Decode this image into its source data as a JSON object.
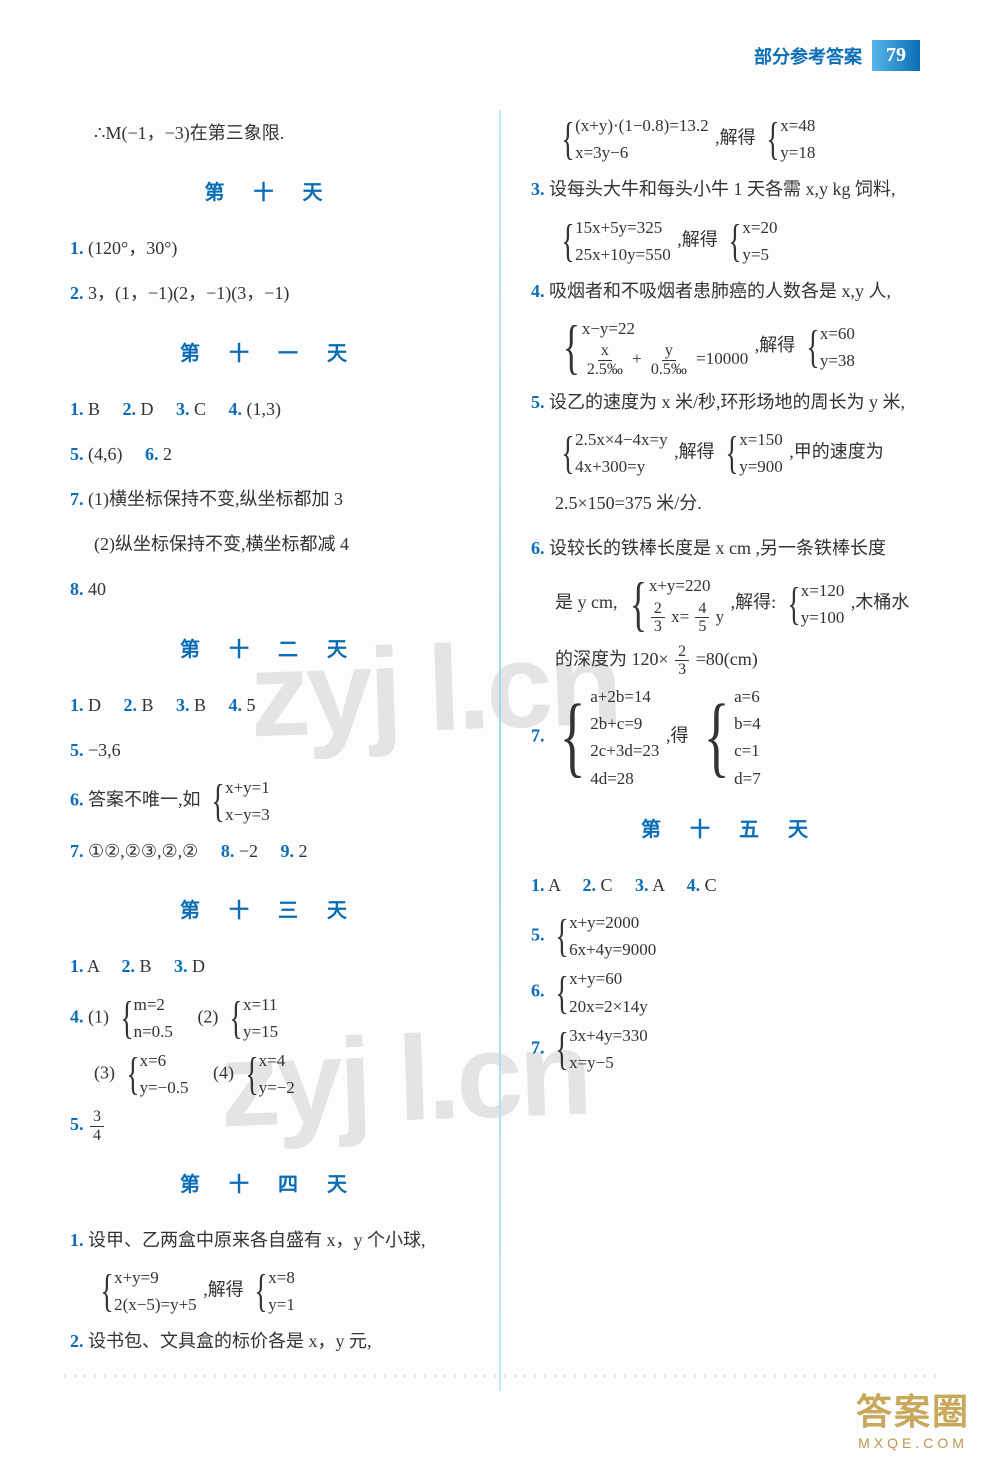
{
  "header": {
    "label": "部分参考答案",
    "page": "79"
  },
  "watermark": "zyj l.cn",
  "footer": {
    "name": "答案圈",
    "url": "MXQE.COM"
  },
  "left": {
    "l0": "∴M(−1，−3)在第三象限.",
    "d10": "第 十 天",
    "l10_1n": "1.",
    "l10_1": "(120°，30°)",
    "l10_2n": "2.",
    "l10_2": "3，(1，−1)(2，−1)(3，−1)",
    "d11": "第 十 一 天",
    "l11_1": "1. B　2. D　3. C　4. (1,3)",
    "l11_1a": "1.",
    "l11_1b": "B",
    "l11_2a": "2.",
    "l11_2b": "D",
    "l11_3a": "3.",
    "l11_3b": "C",
    "l11_4a": "4.",
    "l11_4b": "(1,3)",
    "l11_5a": "5.",
    "l11_5b": "(4,6)",
    "l11_6a": "6.",
    "l11_6b": "2",
    "l11_7a": "7.",
    "l11_7b": "(1)横坐标保持不变,纵坐标都加 3",
    "l11_7c": "(2)纵坐标保持不变,横坐标都减 4",
    "l11_8a": "8.",
    "l11_8b": "40",
    "d12": "第 十 二 天",
    "l12_1a": "1.",
    "l12_1b": "D",
    "l12_2a": "2.",
    "l12_2b": "B",
    "l12_3a": "3.",
    "l12_3b": "B",
    "l12_4a": "4.",
    "l12_4b": "5",
    "l12_5a": "5.",
    "l12_5b": "−3,6",
    "l12_6a": "6.",
    "l12_6b": "答案不唯一,如",
    "l12_6_e1": "x+y=1",
    "l12_6_e2": "x−y=3",
    "l12_7a": "7.",
    "l12_7b": "①②,②③,②,②",
    "l12_8a": "8.",
    "l12_8b": "−2",
    "l12_9a": "9.",
    "l12_9b": "2",
    "d13": "第 十 三 天",
    "l13_1a": "1.",
    "l13_1b": "A",
    "l13_2a": "2.",
    "l13_2b": "B",
    "l13_3a": "3.",
    "l13_3b": "D",
    "l13_4a": "4.",
    "l13_4_1": "(1)",
    "e13_1a": "m=2",
    "e13_1b": "n=0.5",
    "l13_4_2": "(2)",
    "e13_2a": "x=11",
    "e13_2b": "y=15",
    "l13_4_3": "(3)",
    "e13_3a": "x=6",
    "e13_3b": "y=−0.5",
    "l13_4_4": "(4)",
    "e13_4a": "x=4",
    "e13_4b": "y=−2",
    "l13_5a": "5.",
    "l13_5_num": "3",
    "l13_5_den": "4",
    "d14": "第 十 四 天",
    "l14_1a": "1.",
    "l14_1b": "设甲、乙两盒中原来各自盛有 x，y 个小球,",
    "e14_1a": "x+y=9",
    "e14_1b": "2(x−5)=y+5",
    "l14_1c": ",解得",
    "e14_1c": "x=8",
    "e14_1d": "y=1",
    "l14_2a": "2.",
    "l14_2b": "设书包、文具盒的标价各是 x，y 元,"
  },
  "right": {
    "e0a": "(x+y)·(1−0.8)=13.2",
    "e0b": "x=3y−6",
    "t0": ",解得",
    "e0c": "x=48",
    "e0d": "y=18",
    "l3a": "3.",
    "l3b": "设每头大牛和每头小牛 1 天各需 x,y kg 饲料,",
    "e3a": "15x+5y=325",
    "e3b": "25x+10y=550",
    "t3": ",解得",
    "e3c": "x=20",
    "e3d": "y=5",
    "l4a": "4.",
    "l4b": "吸烟者和不吸烟者患肺癌的人数各是 x,y 人,",
    "e4a": "x−y=22",
    "e4b_l": "x",
    "e4b_ld": "2.5‰",
    "e4b_plus": "+",
    "e4b_r": "y",
    "e4b_rd": "0.5‰",
    "e4b_eq": "=10000",
    "t4": ",解得",
    "e4c": "x=60",
    "e4d": "y=38",
    "l5a": "5.",
    "l5b": "设乙的速度为 x 米/秒,环形场地的周长为 y 米,",
    "e5a": "2.5x×4−4x=y",
    "e5b": "4x+300=y",
    "t5": ",解得",
    "e5c": "x=150",
    "e5d": "y=900",
    "t5b": ",甲的速度为",
    "l5c": "2.5×150=375 米/分.",
    "l6a": "6.",
    "l6b": "设较长的铁棒长度是 x cm ,另一条铁棒长度",
    "l6c": "是 y cm,",
    "e6a": "x+y=220",
    "e6b_l": "2",
    "e6b_ld": "3",
    "e6b_m": "x=",
    "e6b_r": "4",
    "e6b_rd": "5",
    "e6b_end": "y",
    "t6": ",解得:",
    "e6c": "x=120",
    "e6d": "y=100",
    "t6b": ",木桶水",
    "l6e": "的深度为 120×",
    "l6e_n": "2",
    "l6e_d": "3",
    "l6f": "=80(cm)",
    "l7a": "7.",
    "e7a": "a+2b=14",
    "e7b": "2b+c=9",
    "e7c": "2c+3d=23",
    "e7d": "4d=28",
    "t7": ",得",
    "e7e": "a=6",
    "e7f": "b=4",
    "e7g": "c=1",
    "e7h": "d=7",
    "d15": "第 十 五 天",
    "l15_1a": "1.",
    "l15_1b": "A",
    "l15_2a": "2.",
    "l15_2b": "C",
    "l15_3a": "3.",
    "l15_3b": "A",
    "l15_4a": "4.",
    "l15_4b": "C",
    "l15_5a": "5.",
    "e15_5a": "x+y=2000",
    "e15_5b": "6x+4y=9000",
    "l15_6a": "6.",
    "e15_6a": "x+y=60",
    "e15_6b": "20x=2×14y",
    "l15_7a": "7.",
    "e15_7a": "3x+4y=330",
    "e15_7b": "x=y−5"
  }
}
